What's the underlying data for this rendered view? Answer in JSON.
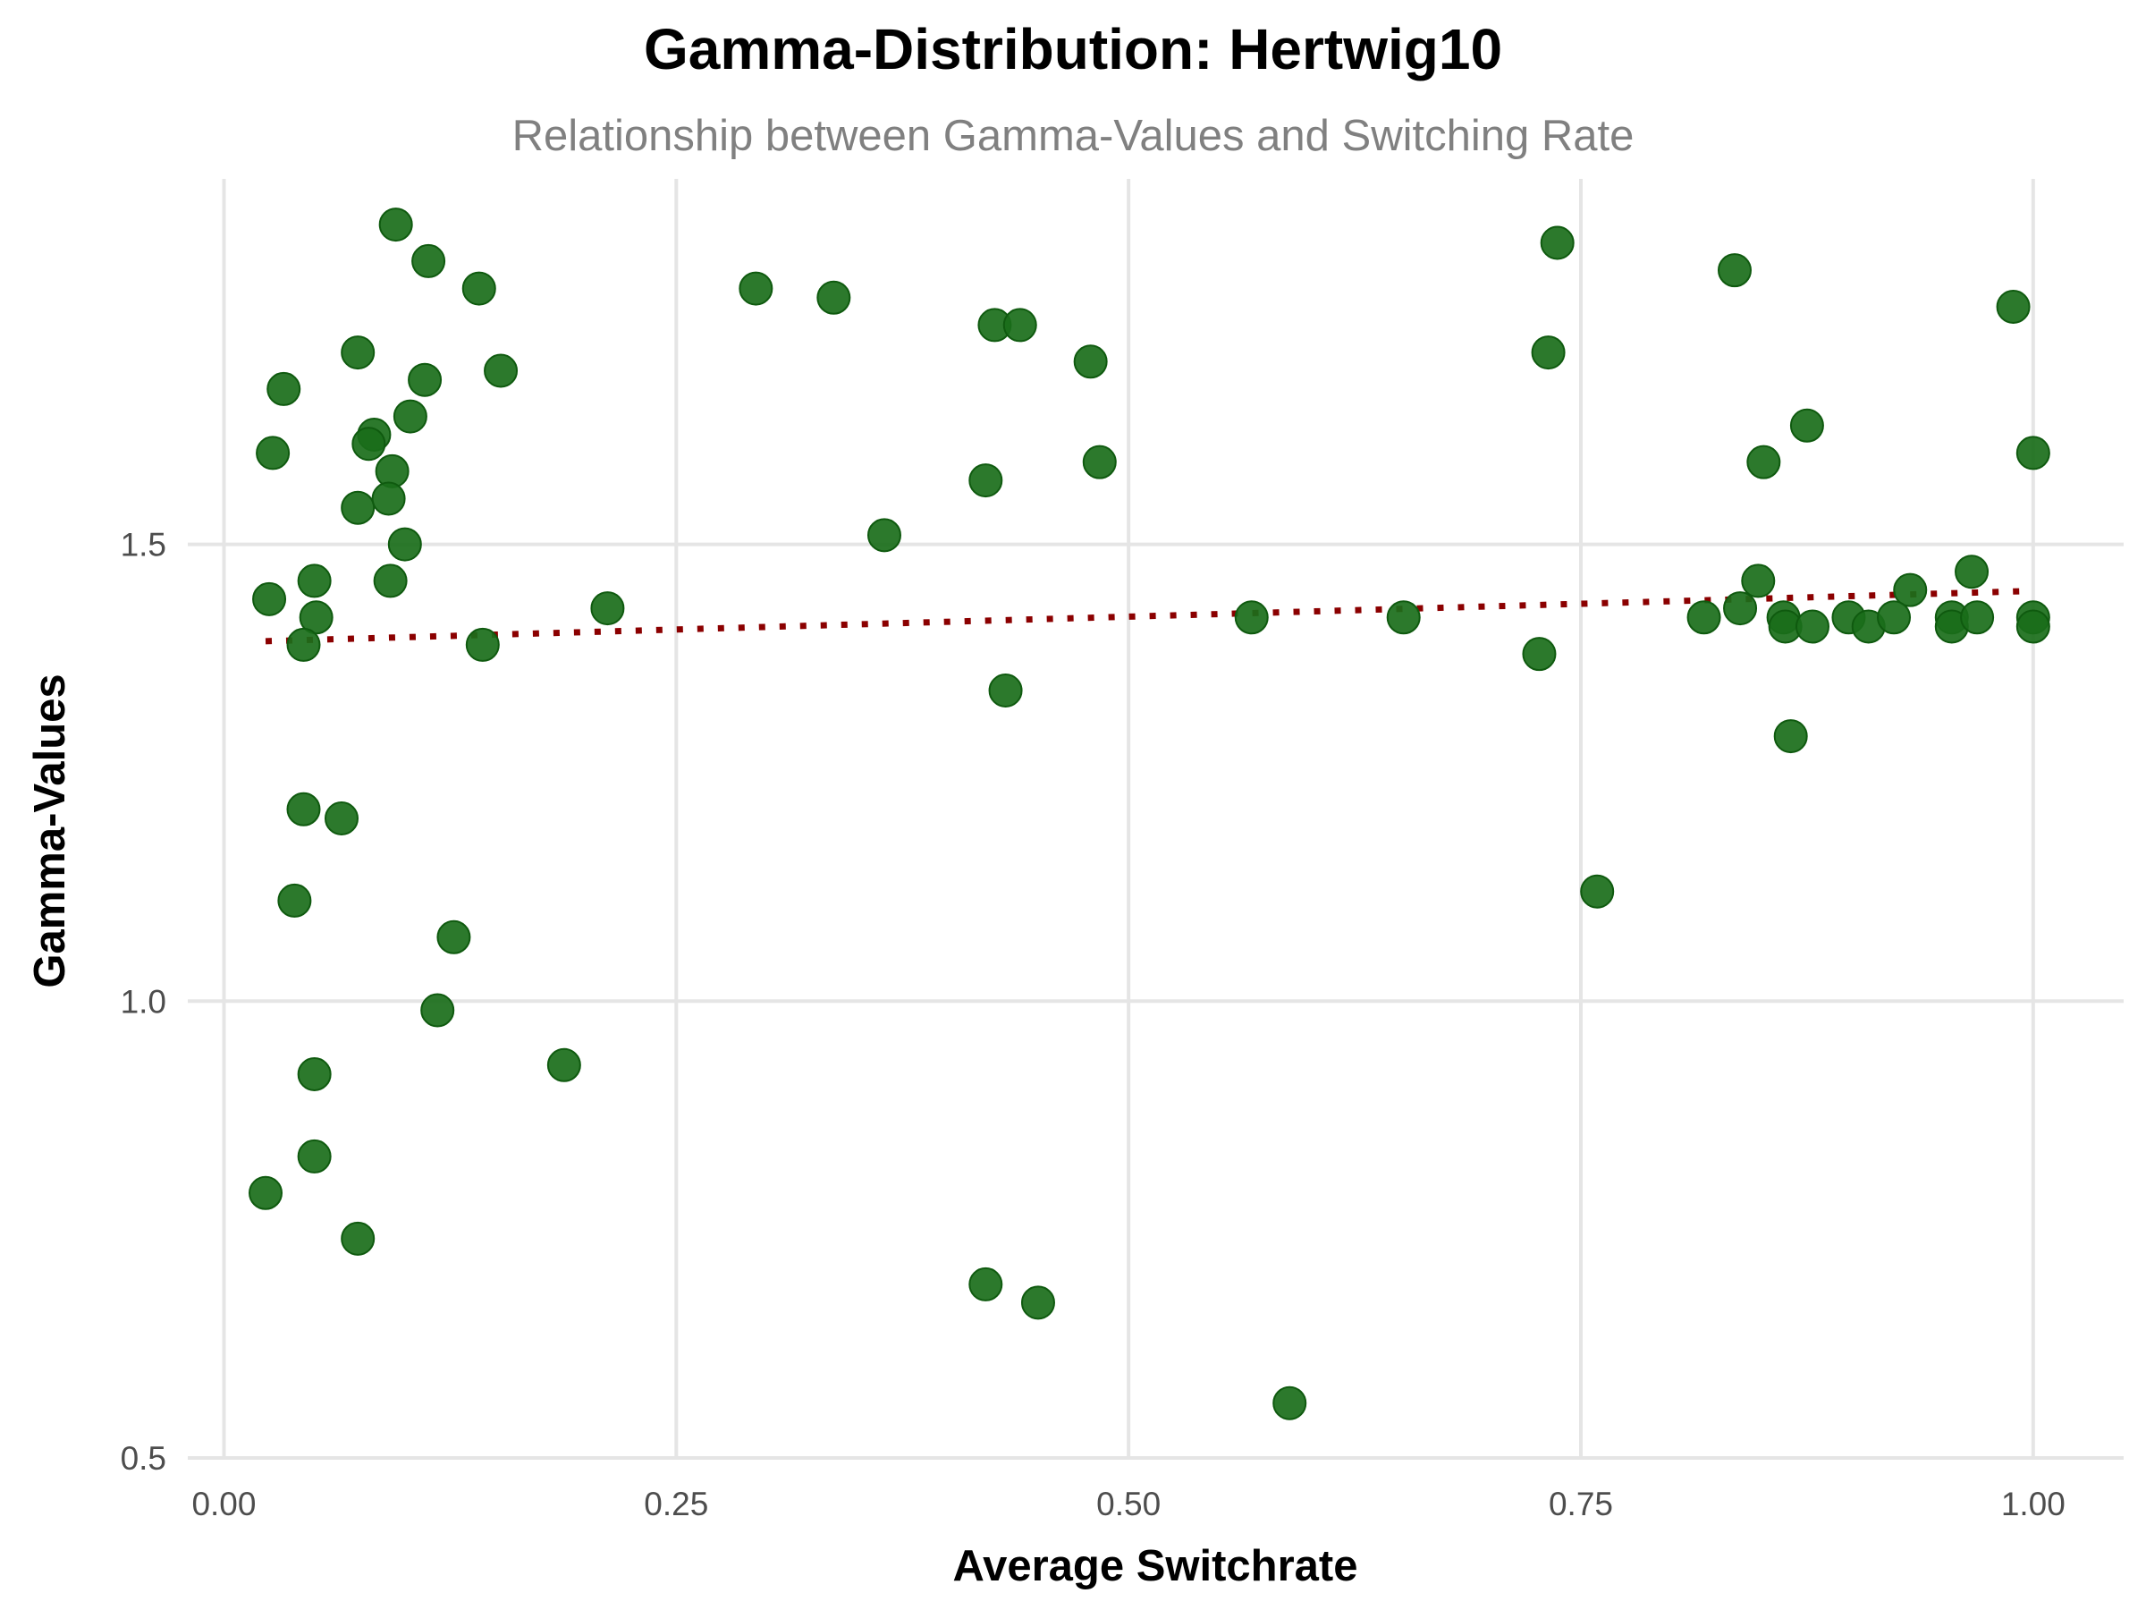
{
  "chart_data": {
    "type": "scatter",
    "title": "Gamma-Distribution: Hertwig10",
    "subtitle": "Relationship between Gamma-Values and Switching Rate",
    "xlabel": "Average Switchrate",
    "ylabel": "Gamma-Values",
    "xlim": [
      -0.02,
      1.05
    ],
    "ylim": [
      0.5,
      1.9
    ],
    "xticks": [
      0.0,
      0.25,
      0.5,
      0.75,
      1.0
    ],
    "xtick_labels": [
      "0.00",
      "0.25",
      "0.50",
      "0.75",
      "1.00"
    ],
    "yticks": [
      0.5,
      1.0,
      1.5
    ],
    "ytick_labels": [
      "0.5",
      "1.0",
      "1.5"
    ],
    "grid": true,
    "legend": "none",
    "point_color": "#1a6e1a",
    "trend_color": "#8b0000",
    "trend_style": "dotted",
    "trend_line": {
      "x": [
        0.023,
        1.0
      ],
      "y": [
        1.394,
        1.449
      ]
    },
    "points": [
      {
        "x": 0.095,
        "y": 1.85
      },
      {
        "x": 0.113,
        "y": 1.81
      },
      {
        "x": 0.141,
        "y": 1.78
      },
      {
        "x": 0.074,
        "y": 1.71
      },
      {
        "x": 0.033,
        "y": 1.67
      },
      {
        "x": 0.111,
        "y": 1.68
      },
      {
        "x": 0.153,
        "y": 1.69
      },
      {
        "x": 0.103,
        "y": 1.64
      },
      {
        "x": 0.083,
        "y": 1.62
      },
      {
        "x": 0.08,
        "y": 1.61
      },
      {
        "x": 0.027,
        "y": 1.6
      },
      {
        "x": 0.093,
        "y": 1.58
      },
      {
        "x": 0.091,
        "y": 1.55
      },
      {
        "x": 0.074,
        "y": 1.54
      },
      {
        "x": 0.1,
        "y": 1.5
      },
      {
        "x": 0.05,
        "y": 1.46
      },
      {
        "x": 0.092,
        "y": 1.46
      },
      {
        "x": 0.025,
        "y": 1.44
      },
      {
        "x": 0.051,
        "y": 1.42
      },
      {
        "x": 0.044,
        "y": 1.39
      },
      {
        "x": 0.143,
        "y": 1.39
      },
      {
        "x": 0.212,
        "y": 1.43
      },
      {
        "x": 0.044,
        "y": 1.21
      },
      {
        "x": 0.065,
        "y": 1.2
      },
      {
        "x": 0.039,
        "y": 1.11
      },
      {
        "x": 0.127,
        "y": 1.07
      },
      {
        "x": 0.118,
        "y": 0.99
      },
      {
        "x": 0.188,
        "y": 0.93
      },
      {
        "x": 0.05,
        "y": 0.92
      },
      {
        "x": 0.05,
        "y": 0.83
      },
      {
        "x": 0.023,
        "y": 0.79
      },
      {
        "x": 0.074,
        "y": 0.74
      },
      {
        "x": 0.294,
        "y": 1.78
      },
      {
        "x": 0.337,
        "y": 1.77
      },
      {
        "x": 0.426,
        "y": 1.74
      },
      {
        "x": 0.44,
        "y": 1.74
      },
      {
        "x": 0.479,
        "y": 1.7
      },
      {
        "x": 0.484,
        "y": 1.59
      },
      {
        "x": 0.421,
        "y": 1.57
      },
      {
        "x": 0.365,
        "y": 1.51
      },
      {
        "x": 0.432,
        "y": 1.34
      },
      {
        "x": 0.421,
        "y": 0.69
      },
      {
        "x": 0.45,
        "y": 0.67
      },
      {
        "x": 0.568,
        "y": 1.42
      },
      {
        "x": 0.589,
        "y": 0.56
      },
      {
        "x": 0.652,
        "y": 1.42
      },
      {
        "x": 0.737,
        "y": 1.83
      },
      {
        "x": 0.732,
        "y": 1.71
      },
      {
        "x": 0.727,
        "y": 1.38
      },
      {
        "x": 0.759,
        "y": 1.12
      },
      {
        "x": 0.835,
        "y": 1.8
      },
      {
        "x": 0.875,
        "y": 1.63
      },
      {
        "x": 0.851,
        "y": 1.59
      },
      {
        "x": 0.989,
        "y": 1.76
      },
      {
        "x": 1.0,
        "y": 1.6
      },
      {
        "x": 0.848,
        "y": 1.46
      },
      {
        "x": 0.966,
        "y": 1.47
      },
      {
        "x": 0.932,
        "y": 1.45
      },
      {
        "x": 0.818,
        "y": 1.42
      },
      {
        "x": 0.838,
        "y": 1.43
      },
      {
        "x": 0.862,
        "y": 1.42
      },
      {
        "x": 0.863,
        "y": 1.41
      },
      {
        "x": 0.878,
        "y": 1.41
      },
      {
        "x": 0.898,
        "y": 1.42
      },
      {
        "x": 0.909,
        "y": 1.41
      },
      {
        "x": 0.923,
        "y": 1.42
      },
      {
        "x": 0.955,
        "y": 1.42
      },
      {
        "x": 0.955,
        "y": 1.41
      },
      {
        "x": 0.969,
        "y": 1.42
      },
      {
        "x": 1.0,
        "y": 1.42
      },
      {
        "x": 1.0,
        "y": 1.41
      },
      {
        "x": 0.866,
        "y": 1.29
      }
    ]
  }
}
